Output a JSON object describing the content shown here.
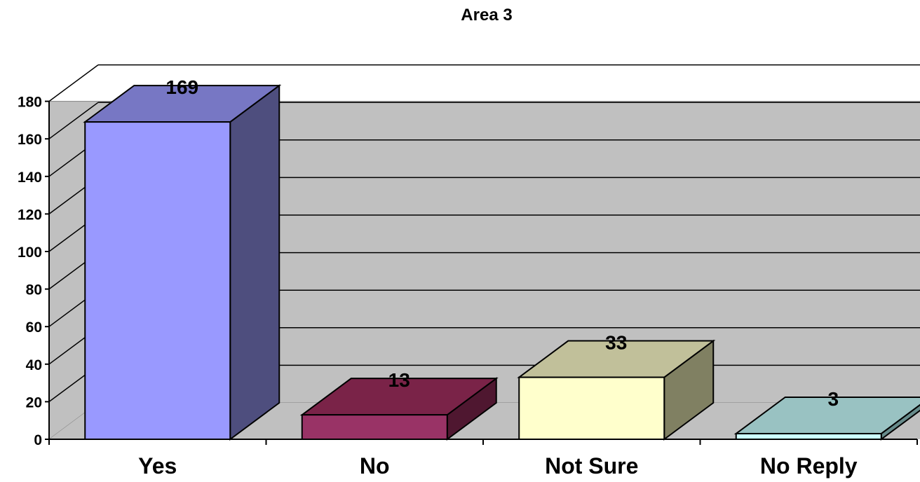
{
  "chart_data": {
    "type": "bar",
    "title": "Area 3",
    "categories": [
      "Yes",
      "No",
      "Not Sure",
      "No Reply"
    ],
    "values": [
      169,
      13,
      33,
      3
    ],
    "data_labels": [
      "169",
      "13",
      "33",
      "3"
    ],
    "y_ticks": [
      "0",
      "20",
      "40",
      "60",
      "80",
      "100",
      "120",
      "140",
      "160",
      "180"
    ],
    "ylim": [
      0,
      180
    ],
    "grid": true,
    "legend": "none",
    "style": "3d-column",
    "colors": {
      "background": "#c0c0c0",
      "bars": [
        {
          "front": "#9999ff",
          "top": "#7777c4",
          "side": "#4e4e7e"
        },
        {
          "front": "#993366",
          "top": "#7a2348",
          "side": "#4f1730"
        },
        {
          "front": "#ffffcc",
          "top": "#c1c09a",
          "side": "#808062"
        },
        {
          "front": "#ccffff",
          "top": "#99c2c2",
          "side": "#678b8b"
        }
      ]
    }
  }
}
